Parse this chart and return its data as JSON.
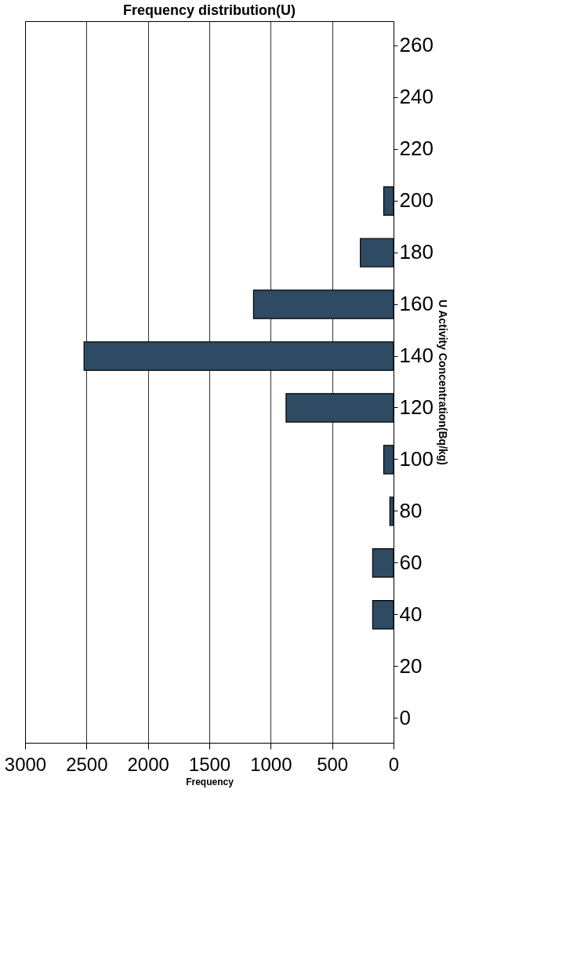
{
  "chart_data": {
    "type": "bar",
    "orientation": "horizontal",
    "title": "Frequency distribution(U)",
    "xlabel": "Frequency",
    "ylabel": "U Activity Concentration(Bq/kg)",
    "categories": [
      "260",
      "240",
      "220",
      "200",
      "180",
      "160",
      "140",
      "120",
      "100",
      "80",
      "60",
      "40",
      "20",
      "0"
    ],
    "series": [
      {
        "color": "#2f4b63",
        "values": [
          0,
          0,
          0,
          80,
          270,
          1140,
          2520,
          875,
          80,
          30,
          170,
          170,
          0,
          0
        ]
      }
    ],
    "xlim": [
      3000,
      0
    ],
    "xticks": [
      3000,
      2500,
      2000,
      1500,
      1000,
      500,
      0
    ],
    "grid": "x"
  }
}
